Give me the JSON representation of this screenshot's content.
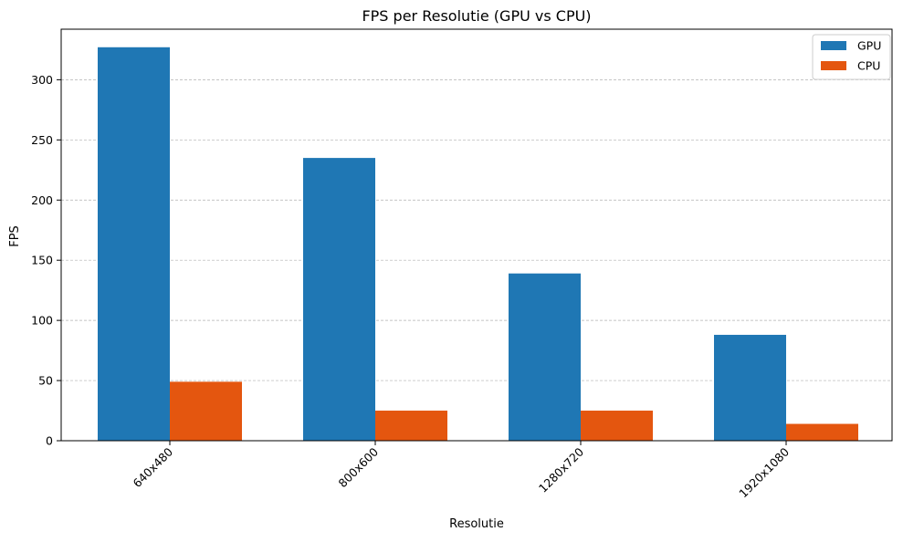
{
  "chart_data": {
    "type": "bar",
    "title": "FPS per Resolutie (GPU vs CPU)",
    "xlabel": "Resolutie",
    "ylabel": "FPS",
    "categories": [
      "640x480",
      "800x600",
      "1280x720",
      "1920x1080"
    ],
    "series": [
      {
        "name": "GPU",
        "color": "#1f77b4",
        "values": [
          327,
          235,
          139,
          88
        ]
      },
      {
        "name": "CPU",
        "color": "#e4560f",
        "values": [
          49,
          25,
          25,
          14
        ]
      }
    ],
    "ylim": [
      0,
      342
    ],
    "yticks": [
      0,
      50,
      100,
      150,
      200,
      250,
      300
    ],
    "grid": "horizontal dashed",
    "legend": "top-right",
    "xtick_rotation": -45
  }
}
